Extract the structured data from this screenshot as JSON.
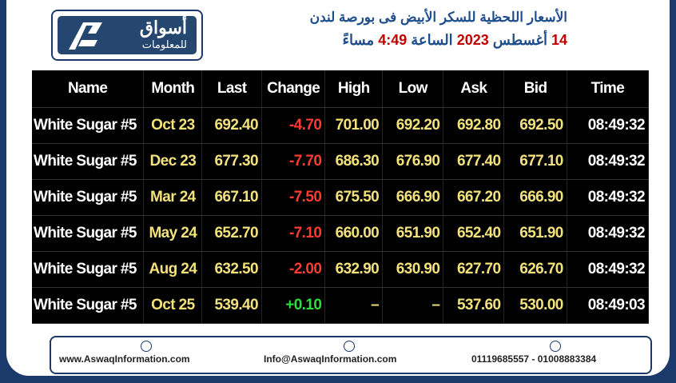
{
  "header": {
    "logo": {
      "name": "أسواق",
      "sub": "للمعلومات"
    },
    "title": "الأسعار اللحظية للسكر الأبيض فى بورصة لندن",
    "subtitle_parts": [
      "14",
      "أغسطس",
      "2023",
      "الساعة",
      "4:49",
      "مساءً"
    ]
  },
  "table": {
    "columns": [
      "Name",
      "Month",
      "Last",
      "Change",
      "High",
      "Low",
      "Ask",
      "Bid",
      "Time"
    ],
    "rows": [
      [
        "White Sugar #5",
        "Oct 23",
        "692.40",
        "-4.70",
        "701.00",
        "692.20",
        "692.80",
        "692.50",
        "08:49:32"
      ],
      [
        "White Sugar #5",
        "Dec 23",
        "677.30",
        "-7.70",
        "686.30",
        "676.90",
        "677.40",
        "677.10",
        "08:49:32"
      ],
      [
        "White Sugar #5",
        "Mar 24",
        "667.10",
        "-7.50",
        "675.50",
        "666.90",
        "667.20",
        "666.90",
        "08:49:32"
      ],
      [
        "White Sugar #5",
        "May 24",
        "652.70",
        "-7.10",
        "660.00",
        "651.90",
        "652.40",
        "651.90",
        "08:49:32"
      ],
      [
        "White Sugar #5",
        "Aug 24",
        "632.50",
        "-2.00",
        "632.90",
        "630.90",
        "627.70",
        "626.70",
        "08:49:32"
      ],
      [
        "White Sugar #5",
        "Oct 25",
        "539.40",
        "+0.10",
        "–",
        "–",
        "537.60",
        "530.00",
        "08:49:03"
      ]
    ]
  },
  "footer": {
    "website": "www.AswaqInformation.com",
    "email": "Info@AswaqInformation.com",
    "phone": "01119685557 - 01008883384"
  }
}
